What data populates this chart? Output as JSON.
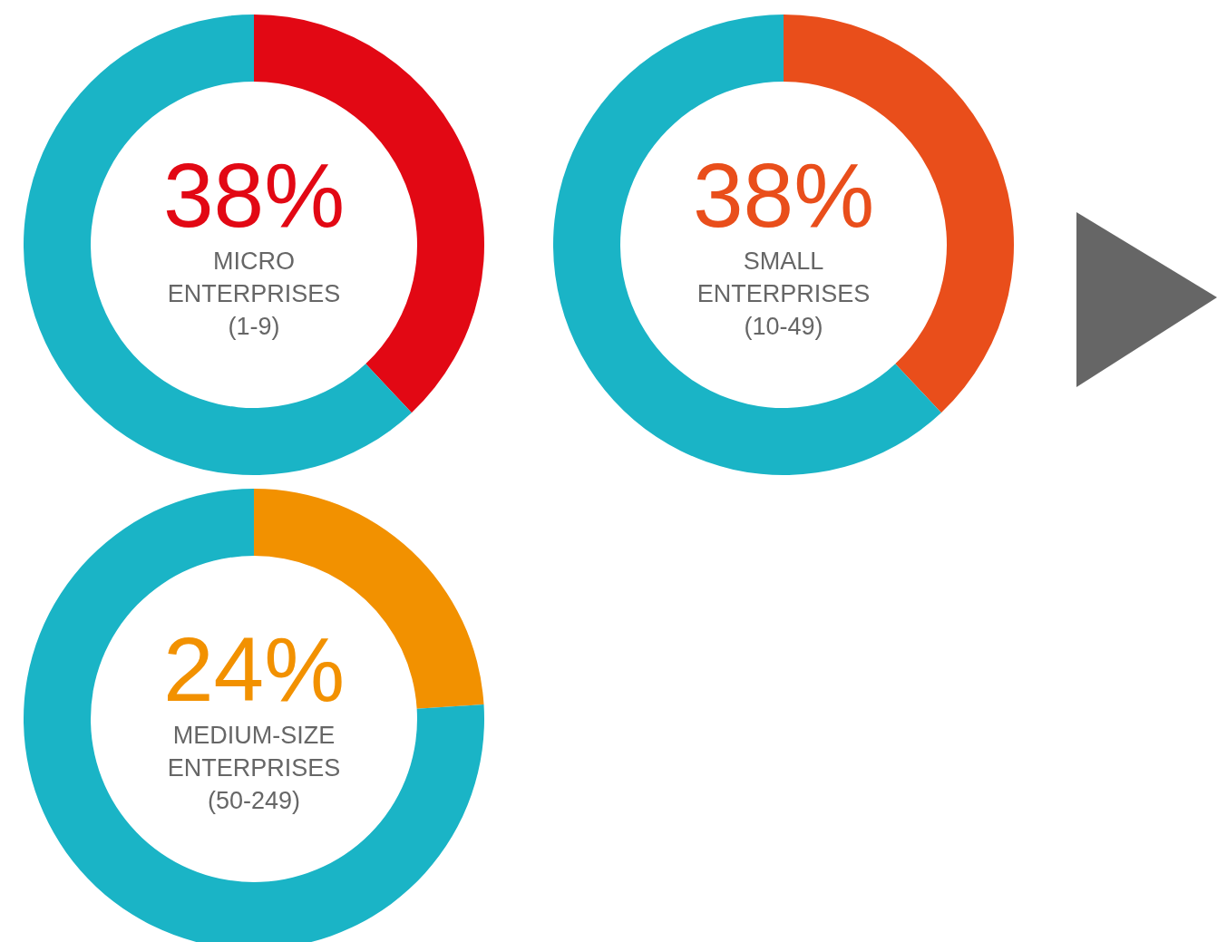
{
  "chart_data": [
    {
      "type": "donut",
      "categories": [
        "MICRO ENTERPRISES (1-9)",
        null
      ],
      "values": [
        38,
        62
      ],
      "colors": [
        "#e20814",
        "#1ab4c6"
      ],
      "value_labels": [
        "38%",
        null
      ],
      "legend": false
    },
    {
      "type": "donut",
      "categories": [
        "SMALL ENTERPRISES (10-49)",
        null
      ],
      "values": [
        38,
        62
      ],
      "colors": [
        "#e94e1b",
        "#1ab4c6"
      ],
      "value_labels": [
        "38%",
        null
      ],
      "legend": false
    },
    {
      "type": "donut",
      "categories": [
        "MEDIUM-SIZE ENTERPRISES (50-249)",
        null
      ],
      "values": [
        24,
        76
      ],
      "colors": [
        "#f29100",
        "#1ab4c6"
      ],
      "value_labels": [
        "24%",
        null
      ],
      "legend": false
    }
  ]
}
